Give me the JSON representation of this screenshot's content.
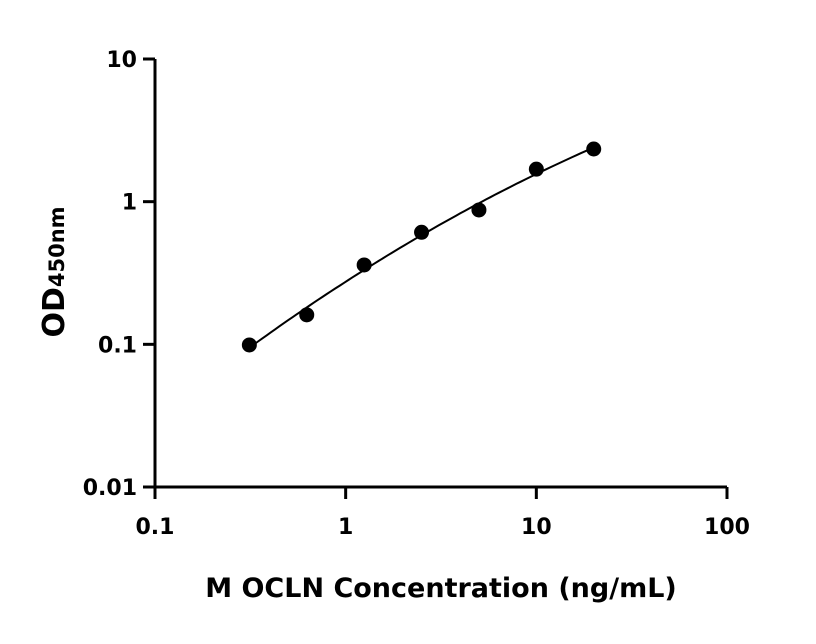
{
  "chart_data": {
    "type": "scatter",
    "xlabel": "M OCLN Concentration (ng/mL)",
    "ylabel_main": "OD",
    "ylabel_sub": "450nm",
    "x_scale": "log",
    "y_scale": "log",
    "xlim": [
      0.1,
      100
    ],
    "ylim": [
      0.01,
      10
    ],
    "x_ticks": [
      "0.1",
      "1",
      "10",
      "100"
    ],
    "y_ticks": [
      "0.01",
      "0.1",
      "1",
      "10"
    ],
    "grid": false,
    "fit_curve": true,
    "colors": {
      "points": "#000000",
      "curve": "#000000"
    },
    "points": [
      {
        "x": 0.3125,
        "y": 0.099
      },
      {
        "x": 0.625,
        "y": 0.161
      },
      {
        "x": 1.25,
        "y": 0.36
      },
      {
        "x": 2.5,
        "y": 0.61
      },
      {
        "x": 5,
        "y": 0.875
      },
      {
        "x": 10,
        "y": 1.69
      },
      {
        "x": 20,
        "y": 2.34
      }
    ]
  }
}
